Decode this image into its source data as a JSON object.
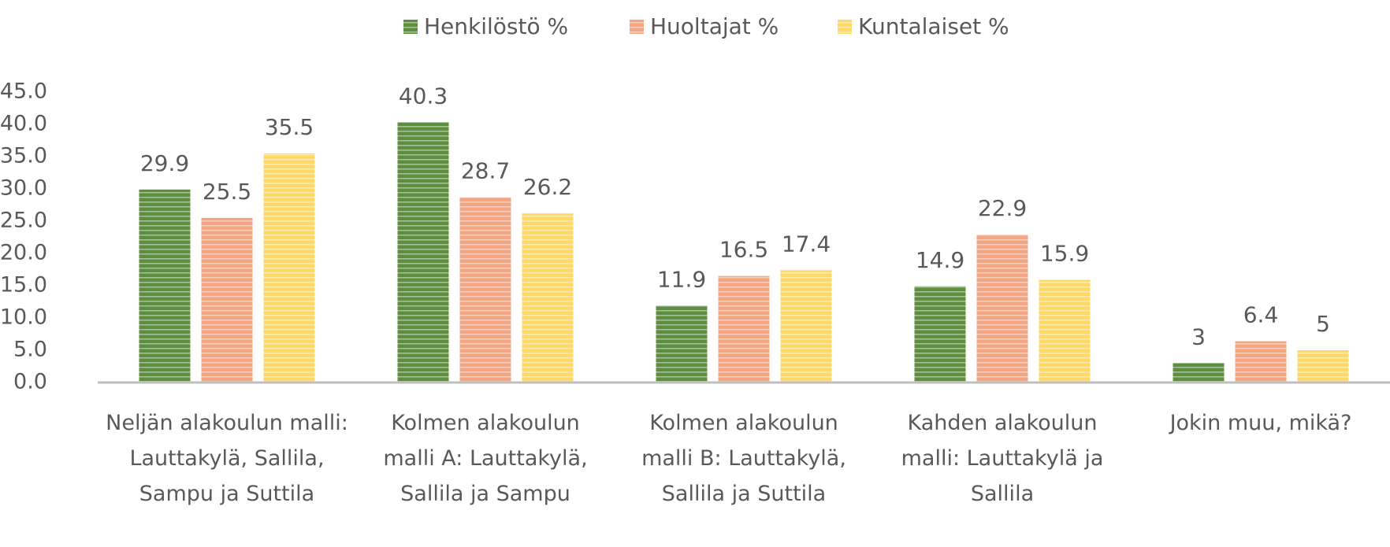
{
  "chart_data": {
    "type": "bar",
    "categories": [
      "Neljän alakoulun malli: Lauttakylä, Sallila, Sampu ja Suttila",
      "Kolmen alakoulun malli A: Lauttakylä, Sallila ja Sampu",
      "Kolmen alakoulun malli B: Lauttakylä, Sallila ja Suttila",
      "Kahden alakoulun malli: Lauttakylä ja Sallila",
      "Jokin muu, mikä?"
    ],
    "series": [
      {
        "name": "Henkilöstö %",
        "color": "#5e8f3e",
        "values": [
          29.9,
          40.3,
          11.9,
          14.9,
          3
        ]
      },
      {
        "name": "Huoltajat %",
        "color": "#f4a582",
        "values": [
          25.5,
          28.7,
          16.5,
          22.9,
          6.4
        ]
      },
      {
        "name": "Kuntalaiset %",
        "color": "#ffd966",
        "values": [
          35.5,
          26.2,
          17.4,
          15.9,
          5
        ]
      }
    ],
    "ylim": [
      0,
      45
    ],
    "yticks": [
      {
        "value": 0,
        "label": "0.0"
      },
      {
        "value": 5,
        "label": "5.0"
      },
      {
        "value": 10,
        "label": "10.0"
      },
      {
        "value": 15,
        "label": "15.0"
      },
      {
        "value": 20,
        "label": "20.0"
      },
      {
        "value": 25,
        "label": "25.0"
      },
      {
        "value": 30,
        "label": "30.0"
      },
      {
        "value": 35,
        "label": "35.0"
      },
      {
        "value": 40,
        "label": "40.0"
      },
      {
        "value": 45,
        "label": "45.0"
      }
    ],
    "grid": false,
    "legend": "top"
  }
}
